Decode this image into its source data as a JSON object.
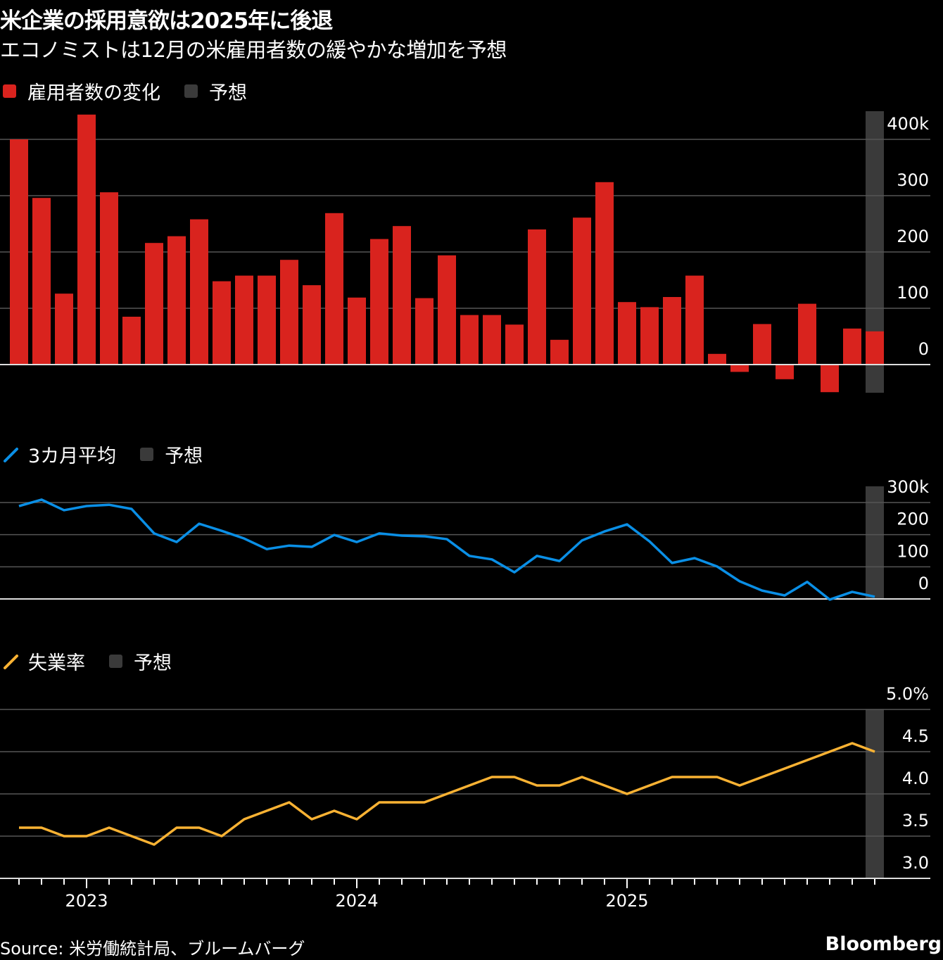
{
  "title": "米企業の採用意欲は2025年に後退",
  "subtitle": "エコノミストは12月の米雇用者数の緩やかな増加を予想",
  "source": "Source: 米労働統計局、ブルームバーグ",
  "brand": "Bloomberg",
  "colors": {
    "bars": "#d9231e",
    "avg_line": "#0a8fe6",
    "unemployment_line": "#f9b233",
    "forecast": "#3a3a3a",
    "grid": "#555555",
    "background": "#000000"
  },
  "x_axis": {
    "months": [
      "2022-10",
      "2022-11",
      "2022-12",
      "2023-01",
      "2023-02",
      "2023-03",
      "2023-04",
      "2023-05",
      "2023-06",
      "2023-07",
      "2023-08",
      "2023-09",
      "2023-10",
      "2023-11",
      "2023-12",
      "2024-01",
      "2024-02",
      "2024-03",
      "2024-04",
      "2024-05",
      "2024-06",
      "2024-07",
      "2024-08",
      "2024-09",
      "2024-10",
      "2024-11",
      "2024-12",
      "2025-01",
      "2025-02",
      "2025-03",
      "2025-04",
      "2025-05",
      "2025-06",
      "2025-07",
      "2025-08",
      "2025-09",
      "2025-10",
      "2025-11",
      "2025-12"
    ],
    "year_labels": [
      {
        "label": "2023",
        "month": "2023-01"
      },
      {
        "label": "2024",
        "month": "2024-01"
      },
      {
        "label": "2025",
        "month": "2025-01"
      }
    ]
  },
  "chart_data": [
    {
      "type": "bar",
      "legend": [
        {
          "label": "雇用者数の変化",
          "color": "#d9231e"
        },
        {
          "label": "予想",
          "color": "#3a3a3a"
        }
      ],
      "forecast_month": "2025-12",
      "values": [
        400,
        296,
        126,
        444,
        306,
        85,
        216,
        228,
        258,
        148,
        158,
        158,
        186,
        141,
        269,
        119,
        223,
        246,
        118,
        194,
        88,
        88,
        71,
        240,
        44,
        261,
        324,
        111,
        102,
        120,
        158,
        19,
        -13,
        72,
        -26,
        108,
        -49,
        64,
        59
      ],
      "ylim": [
        -50,
        450
      ],
      "ticks": [
        {
          "v": 0,
          "label": "0"
        },
        {
          "v": 100,
          "label": "100"
        },
        {
          "v": 200,
          "label": "200"
        },
        {
          "v": 300,
          "label": "300"
        },
        {
          "v": 400,
          "label": "400k"
        }
      ],
      "grid": true
    },
    {
      "type": "line",
      "legend": [
        {
          "label": "3カ月平均",
          "color": "#0a8fe6"
        },
        {
          "label": "予想",
          "color": "#3a3a3a"
        }
      ],
      "forecast_month": "2025-12",
      "values": [
        289,
        309,
        276,
        289,
        293,
        280,
        204,
        177,
        234,
        212,
        188,
        155,
        166,
        162,
        199,
        177,
        204,
        197,
        195,
        186,
        134,
        123,
        83,
        134,
        118,
        182,
        210,
        232,
        179,
        112,
        127,
        101,
        55,
        26,
        11,
        53,
        -2,
        22,
        7
      ],
      "ylim": [
        0,
        350
      ],
      "ticks": [
        {
          "v": 0,
          "label": "0"
        },
        {
          "v": 100,
          "label": "100"
        },
        {
          "v": 200,
          "label": "200"
        },
        {
          "v": 300,
          "label": "300k"
        }
      ],
      "grid": true
    },
    {
      "type": "line",
      "legend": [
        {
          "label": "失業率",
          "color": "#f9b233"
        },
        {
          "label": "予想",
          "color": "#3a3a3a"
        }
      ],
      "forecast_month": "2025-12",
      "values": [
        3.6,
        3.6,
        3.5,
        3.5,
        3.6,
        3.5,
        3.4,
        3.6,
        3.6,
        3.5,
        3.7,
        3.8,
        3.9,
        3.7,
        3.8,
        3.7,
        3.9,
        3.9,
        3.9,
        4.0,
        4.1,
        4.2,
        4.2,
        4.1,
        4.1,
        4.2,
        4.1,
        4.0,
        4.1,
        4.2,
        4.2,
        4.2,
        4.1,
        4.2,
        4.3,
        4.4,
        null,
        4.6,
        4.5
      ],
      "ylim": [
        3.0,
        5.0
      ],
      "ticks": [
        {
          "v": 3.0,
          "label": "3.0"
        },
        {
          "v": 3.5,
          "label": "3.5"
        },
        {
          "v": 4.0,
          "label": "4.0"
        },
        {
          "v": 4.5,
          "label": "4.5"
        },
        {
          "v": 5.0,
          "label": "5.0%"
        }
      ],
      "grid": true
    }
  ]
}
